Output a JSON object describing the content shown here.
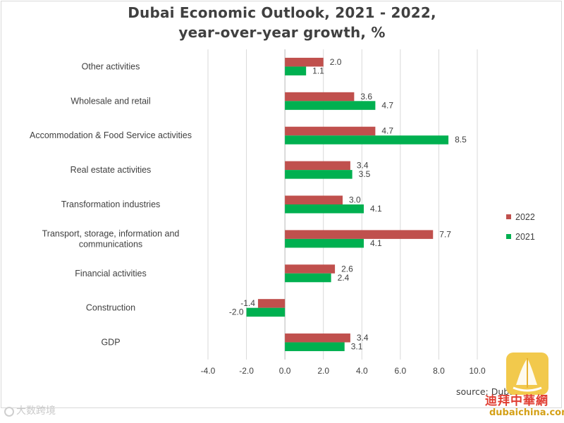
{
  "chart_data": {
    "type": "bar",
    "orientation": "horizontal",
    "title": [
      "Dubai Economic Outlook, 2021 - 2022,",
      "year-over-year growth, %"
    ],
    "categories": [
      [
        "Other activities"
      ],
      [
        "Wholesale and retail"
      ],
      [
        "Accommodation & Food Service activities"
      ],
      [
        "Real estate activities"
      ],
      [
        "Transformation industries"
      ],
      [
        "Transport, storage, information and",
        "communications"
      ],
      [
        "Financial activities"
      ],
      [
        "Construction"
      ],
      [
        "GDP"
      ]
    ],
    "series": [
      {
        "name": "2022",
        "color": "#c0504d",
        "values": [
          2.0,
          3.6,
          4.7,
          3.4,
          3.0,
          7.7,
          2.6,
          -1.4,
          3.4
        ]
      },
      {
        "name": "2021",
        "color": "#00b050",
        "values": [
          1.1,
          4.7,
          8.5,
          3.5,
          4.1,
          4.1,
          2.4,
          -2.0,
          3.1
        ]
      }
    ],
    "xlim": [
      -4.0,
      10.0
    ],
    "xticks": [
      -4.0,
      -2.0,
      0.0,
      2.0,
      4.0,
      6.0,
      8.0,
      10.0
    ],
    "grid": true,
    "legend": "right",
    "source": "source: Dubai DED"
  },
  "watermark": {
    "left_text": "大数跨境",
    "logo_cn": "迪拜中華網",
    "logo_url": "dubaichina.com"
  }
}
